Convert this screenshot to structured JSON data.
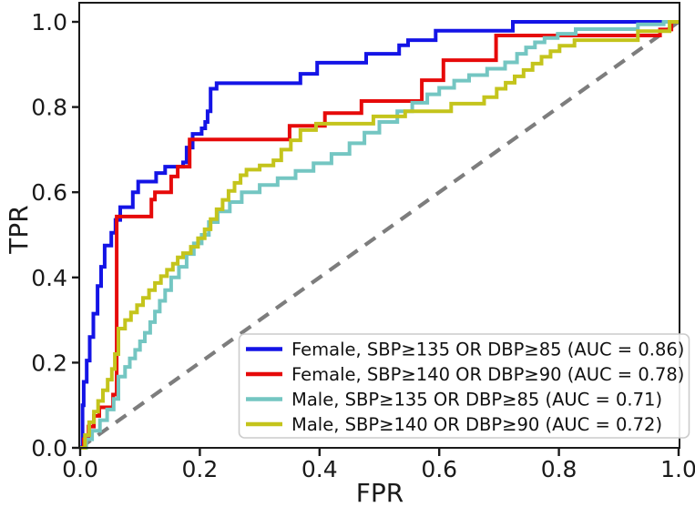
{
  "chart_data": {
    "type": "line",
    "subtype": "roc-curve",
    "title": "",
    "xlabel": "FPR",
    "ylabel": "TPR",
    "xlim": [
      0.0,
      1.0
    ],
    "ylim": [
      0.0,
      1.045
    ],
    "x_ticks": [
      "0.0",
      "0.2",
      "0.4",
      "0.6",
      "0.8",
      "1.0"
    ],
    "y_ticks": [
      "0.0",
      "0.2",
      "0.4",
      "0.6",
      "0.8",
      "1.0"
    ],
    "x_tick_values": [
      0.0,
      0.2,
      0.4,
      0.6,
      0.8,
      1.0
    ],
    "y_tick_values": [
      0.0,
      0.2,
      0.4,
      0.6,
      0.8,
      1.0
    ],
    "grid": false,
    "legend_position": "lower right",
    "colors": {
      "axis": "#1a1a1a",
      "text": "#1a1a1a",
      "diagonal": "#7d7d7d",
      "legend_border": "#cccccc",
      "legend_background": "#ffffff"
    },
    "diagonal_reference": {
      "style": "dashed",
      "points": [
        [
          0,
          0
        ],
        [
          1,
          1
        ]
      ]
    },
    "series": [
      {
        "key": "female-sbp135-dbp85",
        "label": "Female, SBP≥135 OR DBP≥85 (AUC = 0.86)",
        "auc": 0.86,
        "color": "#1414e6",
        "points": [
          [
            0,
            0
          ],
          [
            0.004,
            0.1
          ],
          [
            0.006,
            0.155
          ],
          [
            0.011,
            0.205
          ],
          [
            0.016,
            0.26
          ],
          [
            0.022,
            0.315
          ],
          [
            0.029,
            0.38
          ],
          [
            0.035,
            0.425
          ],
          [
            0.041,
            0.475
          ],
          [
            0.052,
            0.505
          ],
          [
            0.059,
            0.535
          ],
          [
            0.067,
            0.565
          ],
          [
            0.088,
            0.6
          ],
          [
            0.097,
            0.625
          ],
          [
            0.127,
            0.645
          ],
          [
            0.142,
            0.66
          ],
          [
            0.172,
            0.67
          ],
          [
            0.178,
            0.705
          ],
          [
            0.188,
            0.737
          ],
          [
            0.203,
            0.75
          ],
          [
            0.209,
            0.765
          ],
          [
            0.213,
            0.79
          ],
          [
            0.218,
            0.843
          ],
          [
            0.228,
            0.856
          ],
          [
            0.368,
            0.878
          ],
          [
            0.396,
            0.904
          ],
          [
            0.478,
            0.925
          ],
          [
            0.533,
            0.945
          ],
          [
            0.548,
            0.957
          ],
          [
            0.594,
            0.979
          ],
          [
            0.723,
            1.0
          ],
          [
            1.0,
            1.0
          ]
        ]
      },
      {
        "key": "female-sbp140-dbp90",
        "label": "Female, SBP≥140 OR DBP≥90 (AUC = 0.78)",
        "auc": 0.78,
        "color": "#e60a0a",
        "points": [
          [
            0,
            0
          ],
          [
            0.006,
            0.02
          ],
          [
            0.014,
            0.05
          ],
          [
            0.023,
            0.075
          ],
          [
            0.032,
            0.095
          ],
          [
            0.055,
            0.125
          ],
          [
            0.061,
            0.543
          ],
          [
            0.119,
            0.583
          ],
          [
            0.125,
            0.6
          ],
          [
            0.152,
            0.637
          ],
          [
            0.163,
            0.66
          ],
          [
            0.183,
            0.724
          ],
          [
            0.35,
            0.756
          ],
          [
            0.409,
            0.786
          ],
          [
            0.47,
            0.814
          ],
          [
            0.571,
            0.863
          ],
          [
            0.607,
            0.91
          ],
          [
            0.695,
            0.968
          ],
          [
            0.969,
            0.982
          ],
          [
            0.988,
            1.0
          ],
          [
            1.0,
            1.0
          ]
        ]
      },
      {
        "key": "male-sbp135-dbp85",
        "label": "Male, SBP≥135 OR DBP≥85 (AUC = 0.71)",
        "auc": 0.71,
        "color": "#74c6c2",
        "points": [
          [
            0,
            0
          ],
          [
            0.01,
            0.02
          ],
          [
            0.02,
            0.04
          ],
          [
            0.033,
            0.065
          ],
          [
            0.045,
            0.09
          ],
          [
            0.056,
            0.115
          ],
          [
            0.064,
            0.167
          ],
          [
            0.075,
            0.19
          ],
          [
            0.083,
            0.21
          ],
          [
            0.092,
            0.23
          ],
          [
            0.1,
            0.25
          ],
          [
            0.108,
            0.27
          ],
          [
            0.117,
            0.295
          ],
          [
            0.125,
            0.32
          ],
          [
            0.133,
            0.345
          ],
          [
            0.142,
            0.37
          ],
          [
            0.152,
            0.4
          ],
          [
            0.165,
            0.425
          ],
          [
            0.178,
            0.455
          ],
          [
            0.19,
            0.48
          ],
          [
            0.203,
            0.5
          ],
          [
            0.215,
            0.53
          ],
          [
            0.23,
            0.555
          ],
          [
            0.25,
            0.577
          ],
          [
            0.27,
            0.6
          ],
          [
            0.3,
            0.617
          ],
          [
            0.33,
            0.633
          ],
          [
            0.36,
            0.65
          ],
          [
            0.39,
            0.668
          ],
          [
            0.42,
            0.69
          ],
          [
            0.45,
            0.715
          ],
          [
            0.475,
            0.74
          ],
          [
            0.5,
            0.765
          ],
          [
            0.53,
            0.79
          ],
          [
            0.555,
            0.81
          ],
          [
            0.58,
            0.83
          ],
          [
            0.6,
            0.845
          ],
          [
            0.625,
            0.862
          ],
          [
            0.65,
            0.875
          ],
          [
            0.68,
            0.89
          ],
          [
            0.71,
            0.905
          ],
          [
            0.73,
            0.925
          ],
          [
            0.745,
            0.94
          ],
          [
            0.76,
            0.952
          ],
          [
            0.776,
            0.962
          ],
          [
            0.798,
            0.972
          ],
          [
            0.828,
            0.983
          ],
          [
            0.932,
            0.994
          ],
          [
            0.975,
            1.0
          ],
          [
            1.0,
            1.0
          ]
        ]
      },
      {
        "key": "male-sbp140-dbp90",
        "label": "Male, SBP≥140 OR DBP≥90 (AUC = 0.72)",
        "auc": 0.72,
        "color": "#c4c41c",
        "points": [
          [
            0,
            0
          ],
          [
            0.008,
            0.03
          ],
          [
            0.015,
            0.06
          ],
          [
            0.023,
            0.085
          ],
          [
            0.03,
            0.11
          ],
          [
            0.038,
            0.135
          ],
          [
            0.046,
            0.16
          ],
          [
            0.053,
            0.185
          ],
          [
            0.058,
            0.22
          ],
          [
            0.064,
            0.28
          ],
          [
            0.075,
            0.3
          ],
          [
            0.085,
            0.318
          ],
          [
            0.095,
            0.335
          ],
          [
            0.105,
            0.352
          ],
          [
            0.115,
            0.37
          ],
          [
            0.125,
            0.387
          ],
          [
            0.135,
            0.403
          ],
          [
            0.145,
            0.418
          ],
          [
            0.155,
            0.432
          ],
          [
            0.163,
            0.447
          ],
          [
            0.172,
            0.457
          ],
          [
            0.185,
            0.472
          ],
          [
            0.197,
            0.492
          ],
          [
            0.208,
            0.513
          ],
          [
            0.218,
            0.537
          ],
          [
            0.228,
            0.56
          ],
          [
            0.238,
            0.582
          ],
          [
            0.248,
            0.603
          ],
          [
            0.258,
            0.622
          ],
          [
            0.268,
            0.64
          ],
          [
            0.278,
            0.653
          ],
          [
            0.3,
            0.663
          ],
          [
            0.323,
            0.675
          ],
          [
            0.336,
            0.7
          ],
          [
            0.352,
            0.722
          ],
          [
            0.368,
            0.746
          ],
          [
            0.394,
            0.761
          ],
          [
            0.49,
            0.778
          ],
          [
            0.543,
            0.79
          ],
          [
            0.62,
            0.808
          ],
          [
            0.675,
            0.823
          ],
          [
            0.696,
            0.843
          ],
          [
            0.711,
            0.857
          ],
          [
            0.726,
            0.872
          ],
          [
            0.741,
            0.887
          ],
          [
            0.756,
            0.902
          ],
          [
            0.771,
            0.918
          ],
          [
            0.786,
            0.931
          ],
          [
            0.801,
            0.944
          ],
          [
            0.826,
            0.957
          ],
          [
            0.932,
            0.978
          ],
          [
            0.985,
            1.0
          ],
          [
            1.0,
            1.0
          ]
        ]
      }
    ]
  }
}
